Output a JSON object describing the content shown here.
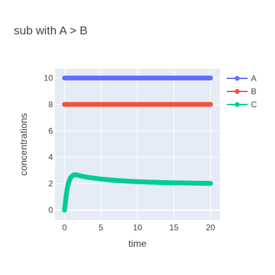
{
  "chart_data": {
    "type": "scatter",
    "title": "sub with A > B",
    "xlabel": "time",
    "ylabel": "concentrations",
    "xlim": [
      -1.3,
      21.3
    ],
    "ylim": [
      -0.75,
      10.7
    ],
    "xticks": [
      0,
      5,
      10,
      15,
      20
    ],
    "yticks": [
      0,
      2,
      4,
      6,
      8,
      10
    ],
    "grid": true,
    "legend": "right",
    "series": [
      {
        "name": "A",
        "color": "#636efa",
        "x": [
          0,
          20
        ],
        "y": [
          10,
          10
        ]
      },
      {
        "name": "B",
        "color": "#ef553b",
        "x": [
          0,
          20
        ],
        "y": [
          8,
          8
        ]
      },
      {
        "name": "C",
        "color": "#00cc96",
        "x": [
          0,
          0.1,
          0.2,
          0.35,
          0.5,
          0.7,
          0.9,
          1.2,
          1.5,
          2,
          2.5,
          3,
          4,
          5,
          6,
          7,
          8,
          9,
          10,
          11,
          12,
          13,
          14,
          15,
          16,
          17,
          18,
          19,
          20
        ],
        "y": [
          0,
          0.45,
          0.95,
          1.55,
          1.95,
          2.3,
          2.5,
          2.65,
          2.68,
          2.62,
          2.55,
          2.5,
          2.42,
          2.35,
          2.3,
          2.25,
          2.21,
          2.18,
          2.15,
          2.13,
          2.11,
          2.09,
          2.08,
          2.07,
          2.06,
          2.05,
          2.04,
          2.03,
          2.02
        ]
      }
    ]
  }
}
